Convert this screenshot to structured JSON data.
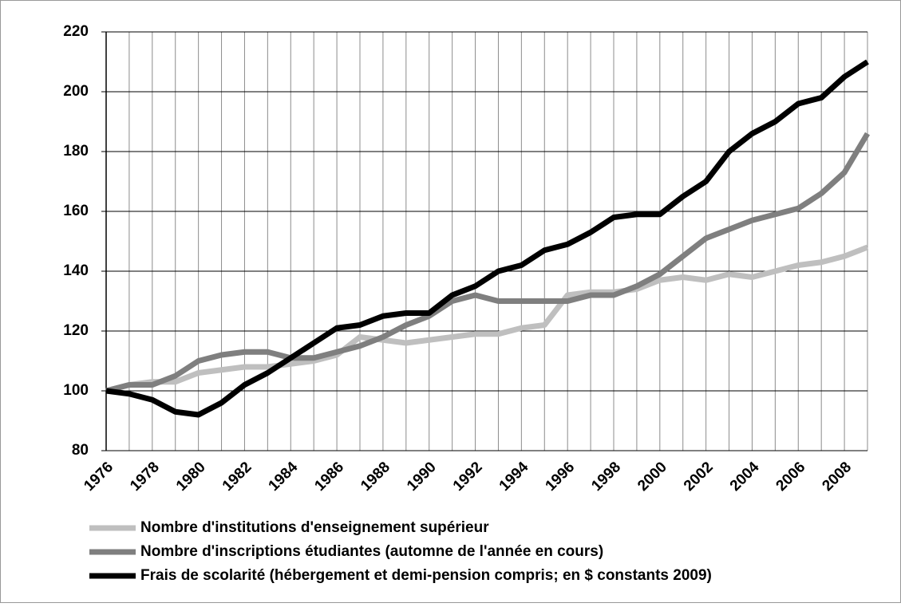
{
  "chart_data": {
    "type": "line",
    "categories": [
      "1976",
      null,
      "1978",
      null,
      "1980",
      null,
      "1982",
      null,
      "1984",
      null,
      "1986",
      null,
      "1988",
      null,
      "1990",
      null,
      "1992",
      null,
      "1994",
      null,
      "1996",
      null,
      "1998",
      null,
      "2000",
      null,
      "2002",
      null,
      "2004",
      null,
      "2006",
      null,
      "2008",
      null
    ],
    "series": [
      {
        "name": "Nombre d'institutions d'enseignement supérieur",
        "color": "#bfbfbf",
        "values": [
          100,
          102,
          103,
          103,
          106,
          107,
          108,
          108,
          109,
          110,
          112,
          118,
          117,
          116,
          117,
          118,
          119,
          119,
          121,
          122,
          132,
          133,
          133,
          134,
          137,
          138,
          137,
          139,
          138,
          140,
          142,
          143,
          145,
          148
        ]
      },
      {
        "name": "Nombre d'inscriptions étudiantes (automne de l'année en cours)",
        "color": "#7f7f7f",
        "values": [
          100,
          102,
          102,
          105,
          110,
          112,
          113,
          113,
          111,
          111,
          113,
          115,
          118,
          122,
          125,
          130,
          132,
          130,
          130,
          130,
          130,
          132,
          132,
          135,
          139,
          145,
          151,
          154,
          157,
          159,
          161,
          166,
          173,
          186
        ]
      },
      {
        "name": "Frais de scolarité (hébergement et demi-pension compris; en $ constants 2009)",
        "color": "#000000",
        "values": [
          100,
          99,
          97,
          93,
          92,
          96,
          102,
          106,
          111,
          116,
          121,
          122,
          125,
          126,
          126,
          132,
          135,
          140,
          142,
          147,
          149,
          153,
          158,
          159,
          159,
          165,
          170,
          180,
          186,
          190,
          196,
          198,
          205,
          210
        ]
      }
    ],
    "ylim": [
      80,
      220
    ],
    "yticks": [
      80,
      100,
      120,
      140,
      160,
      180,
      200,
      220
    ],
    "grid": true,
    "legend": "bottom"
  }
}
